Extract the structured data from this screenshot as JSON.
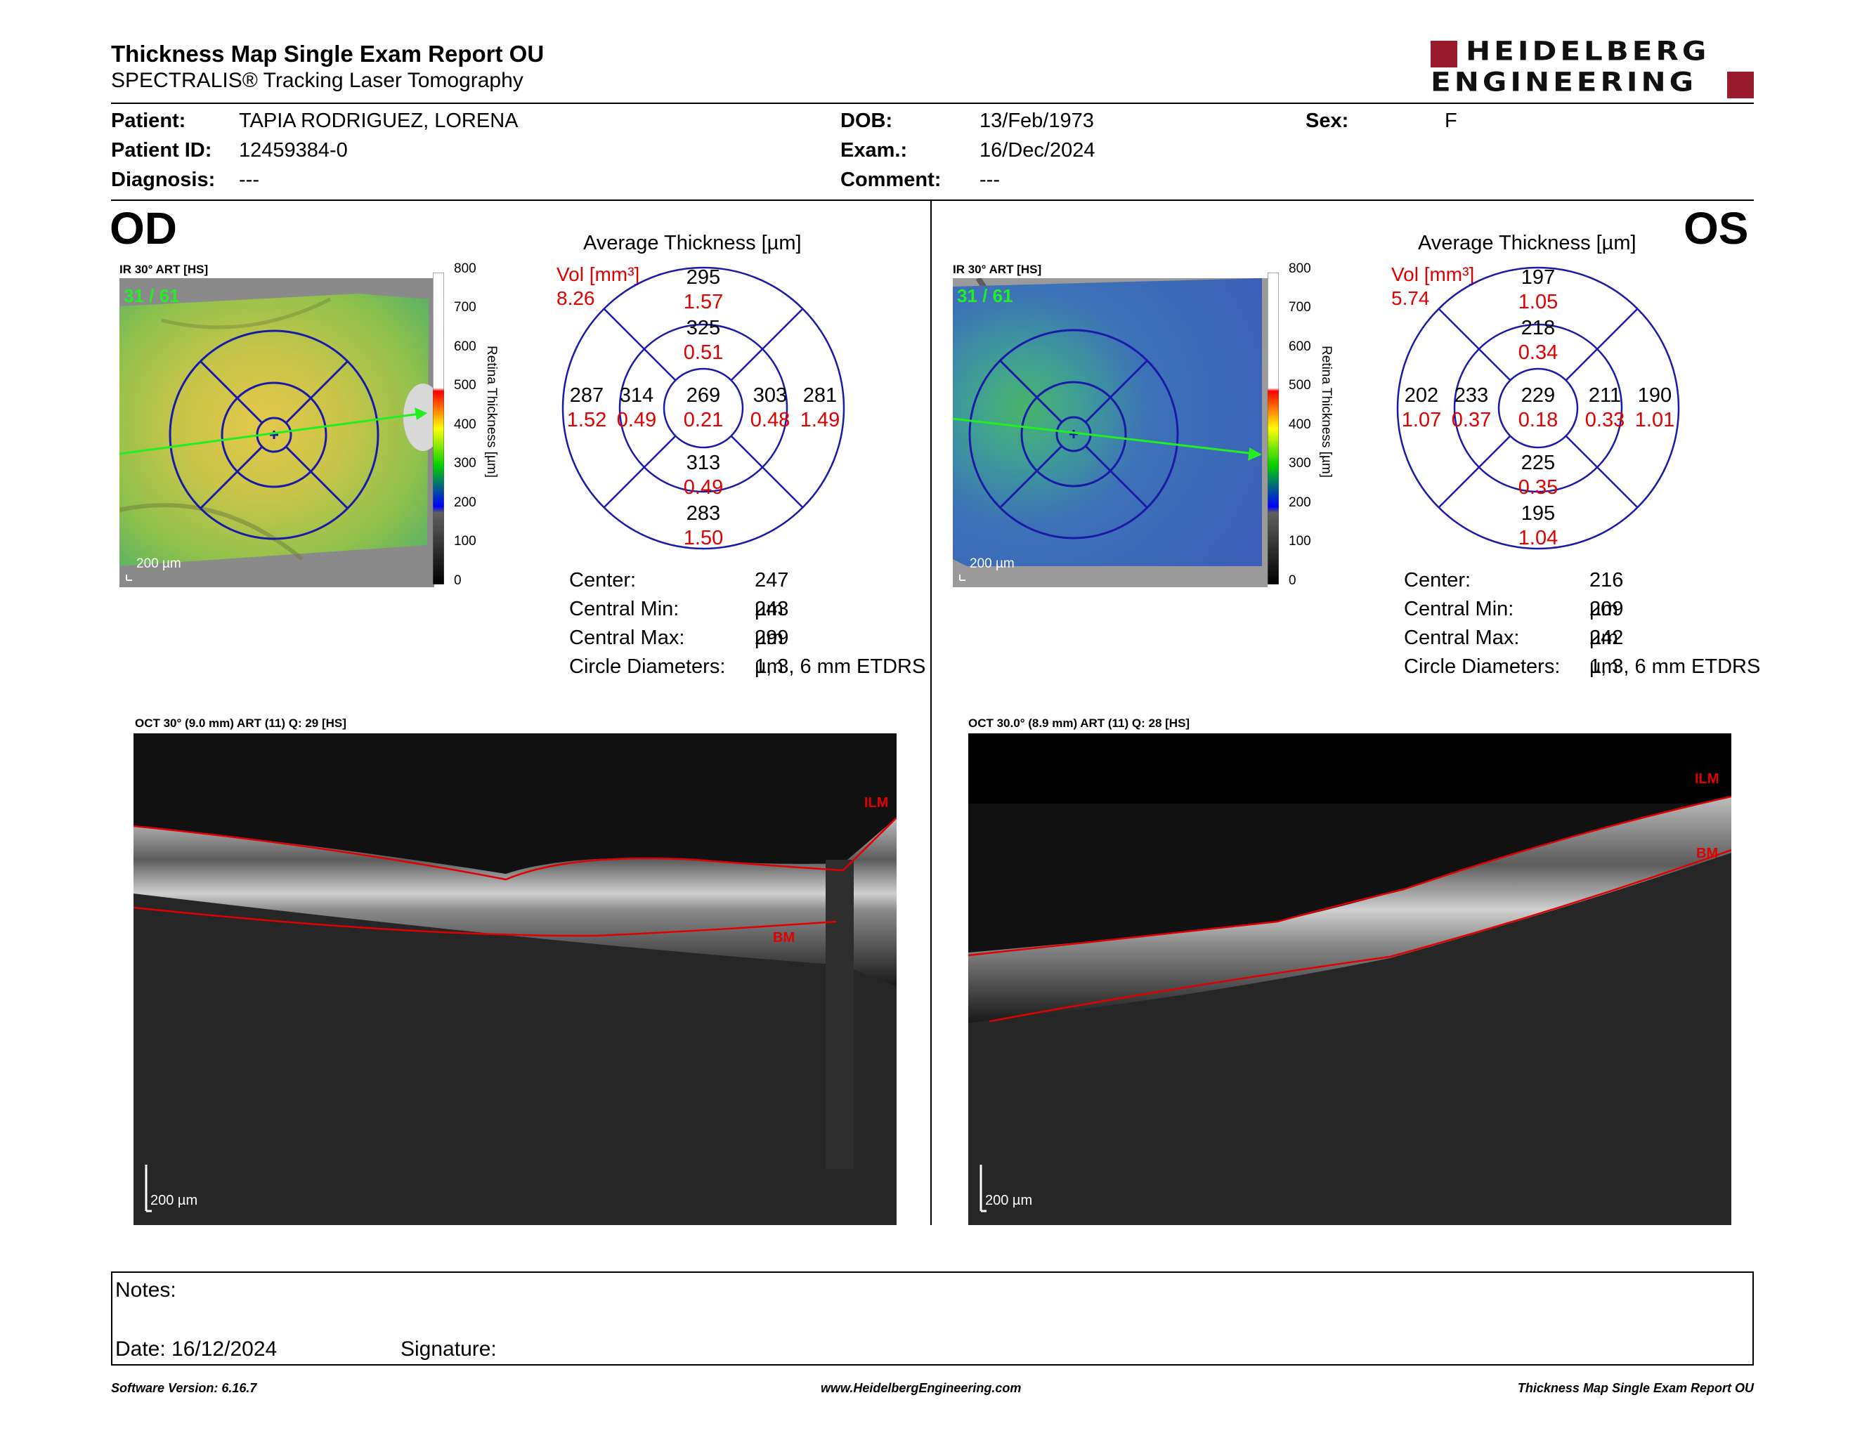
{
  "header": {
    "title": "Thickness Map Single Exam Report OU",
    "subtitle": "SPECTRALIS® Tracking Laser Tomography",
    "logo_line1": "HEIDELBERG",
    "logo_line2": "ENGINEERING"
  },
  "patient": {
    "patient_label": "Patient:",
    "patient_value": "TAPIA RODRIGUEZ, LORENA",
    "id_label": "Patient ID:",
    "id_value": "12459384-0",
    "diagnosis_label": "Diagnosis:",
    "diagnosis_value": "---",
    "dob_label": "DOB:",
    "dob_value": "13/Feb/1973",
    "exam_label": "Exam.:",
    "exam_value": "16/Dec/2024",
    "comment_label": "Comment:",
    "comment_value": "---",
    "sex_label": "Sex:",
    "sex_value": "F"
  },
  "scale": {
    "title": "Retina  Thickness [µm]",
    "ticks": [
      "800",
      "700",
      "600",
      "500",
      "400",
      "300",
      "200",
      "100",
      "0"
    ]
  },
  "od": {
    "eye": "OD",
    "ir_title": "IR 30° ART [HS]",
    "frame": "31 / 61",
    "scalebar": "200 µm",
    "avg_title": "Average Thickness [µm]",
    "vol_label": "Vol [mm³]",
    "vol_value": "8.26",
    "etdrs": {
      "center_t": "269",
      "center_v": "0.21",
      "inner_sup_t": "325",
      "inner_sup_v": "0.51",
      "inner_inf_t": "313",
      "inner_inf_v": "0.49",
      "inner_left_t": "314",
      "inner_left_v": "0.49",
      "inner_right_t": "303",
      "inner_right_v": "0.48",
      "outer_sup_t": "295",
      "outer_sup_v": "1.57",
      "outer_inf_t": "283",
      "outer_inf_v": "1.50",
      "outer_left_t": "287",
      "outer_left_v": "1.52",
      "outer_right_t": "281",
      "outer_right_v": "1.49"
    },
    "stats": [
      {
        "label": "Center:",
        "value": "247 µm"
      },
      {
        "label": "Central Min:",
        "value": "243 µm"
      },
      {
        "label": "Central Max:",
        "value": "299 µm"
      },
      {
        "label": "Circle Diameters:",
        "value": "1, 3, 6 mm ETDRS"
      }
    ],
    "oct_title": "OCT 30° (9.0 mm) ART (11) Q: 29 [HS]",
    "oct_ilm": "ILM",
    "oct_bm": "BM",
    "oct_scalebar": "200 µm"
  },
  "os": {
    "eye": "OS",
    "ir_title": "IR 30° ART [HS]",
    "frame": "31 / 61",
    "scalebar": "200 µm",
    "avg_title": "Average Thickness [µm]",
    "vol_label": "Vol [mm³]",
    "vol_value": "5.74",
    "etdrs": {
      "center_t": "229",
      "center_v": "0.18",
      "inner_sup_t": "218",
      "inner_sup_v": "0.34",
      "inner_inf_t": "225",
      "inner_inf_v": "0.35",
      "inner_left_t": "233",
      "inner_left_v": "0.37",
      "inner_right_t": "211",
      "inner_right_v": "0.33",
      "outer_sup_t": "197",
      "outer_sup_v": "1.05",
      "outer_inf_t": "195",
      "outer_inf_v": "1.04",
      "outer_left_t": "202",
      "outer_left_v": "1.07",
      "outer_right_t": "190",
      "outer_right_v": "1.01"
    },
    "stats": [
      {
        "label": "Center:",
        "value": "216 µm"
      },
      {
        "label": "Central Min:",
        "value": "209 µm"
      },
      {
        "label": "Central Max:",
        "value": "242 µm"
      },
      {
        "label": "Circle Diameters:",
        "value": "1, 3, 6 mm ETDRS"
      }
    ],
    "oct_title": "OCT 30.0° (8.9 mm) ART (11) Q: 28 [HS]",
    "oct_ilm": "ILM",
    "oct_bm": "BM",
    "oct_scalebar": "200 µm"
  },
  "notes": {
    "notes_label": "Notes:",
    "date_label": "Date: 16/12/2024",
    "signature_label": "Signature:"
  },
  "footer": {
    "software": "Software Version: 6.16.7",
    "website": "www.HeidelbergEngineering.com",
    "report": "Thickness Map Single Exam Report OU"
  },
  "colors": {
    "accent_red": "#e00000",
    "logo_red": "#9b1b2e",
    "grid_blue": "#1a1aa8",
    "scan_green": "#22ee22"
  }
}
